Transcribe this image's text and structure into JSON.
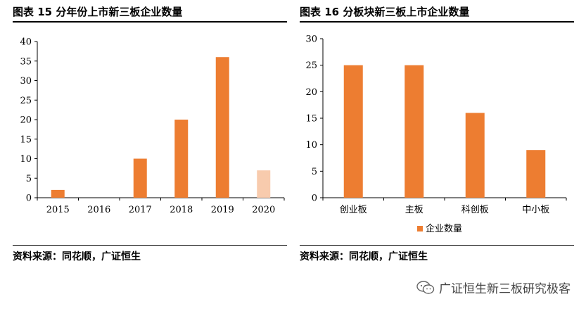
{
  "left": {
    "title": "图表 15 分年份上市新三板企业数量",
    "source": "资料来源：同花顺，广证恒生"
  },
  "right": {
    "title": "图表 16 分板块新三板上市企业数量",
    "source": "资料来源：同花顺，广证恒生"
  },
  "watermark": {
    "text": "广证恒生新三板研究极客",
    "icon": "wechat-icon"
  },
  "colors": {
    "bar": "#ed7d31",
    "bar_light": "#f8cbad"
  },
  "chart_data": [
    {
      "type": "bar",
      "categories": [
        "2015",
        "2016",
        "2017",
        "2018",
        "2019",
        "2020"
      ],
      "values": [
        2,
        0,
        10,
        20,
        36,
        7
      ],
      "ylim": [
        0,
        40
      ],
      "yticks": [
        0,
        5,
        10,
        15,
        20,
        25,
        30,
        35,
        40
      ],
      "highlight_light": [
        "2020"
      ],
      "legend": "none",
      "grid": false
    },
    {
      "type": "bar",
      "categories": [
        "创业板",
        "主板",
        "科创板",
        "中小板"
      ],
      "series": [
        {
          "name": "企业数量",
          "values": [
            25,
            25,
            16,
            9
          ]
        }
      ],
      "ylim": [
        0,
        30
      ],
      "yticks": [
        0,
        5,
        10,
        15,
        20,
        25,
        30
      ],
      "legend": "bottom",
      "grid": false
    }
  ]
}
